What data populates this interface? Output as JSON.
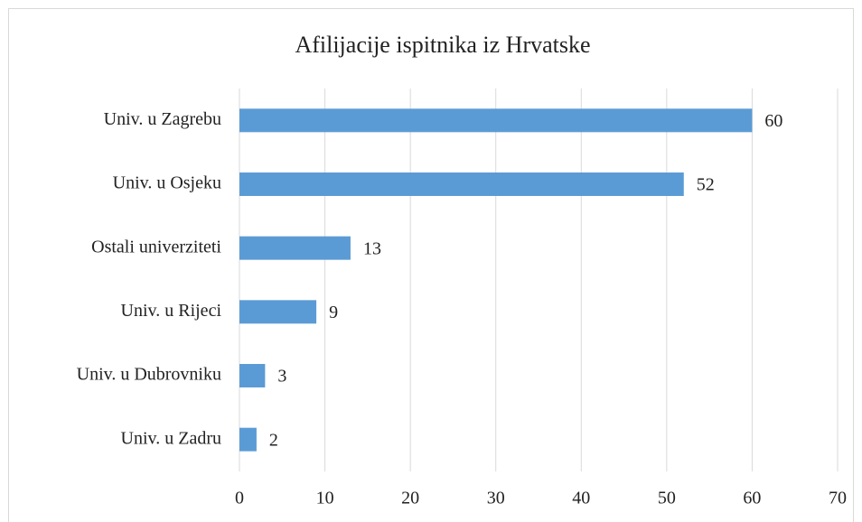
{
  "chart_data": {
    "type": "barh",
    "title": "Afilijacije ispitnika iz Hrvatske",
    "categories": [
      "Univ. u Zagrebu",
      "Univ. u Osjeku",
      "Ostali univerziteti",
      "Univ. u Rijeci",
      "Univ. u Dubrovniku",
      "Univ. u Zadru"
    ],
    "values": [
      60,
      52,
      13,
      9,
      3,
      2
    ],
    "color": "#5b9bd5",
    "xlim": [
      0,
      70
    ],
    "xticks": [
      0,
      10,
      20,
      30,
      40,
      50,
      60,
      70
    ],
    "grid": true
  }
}
